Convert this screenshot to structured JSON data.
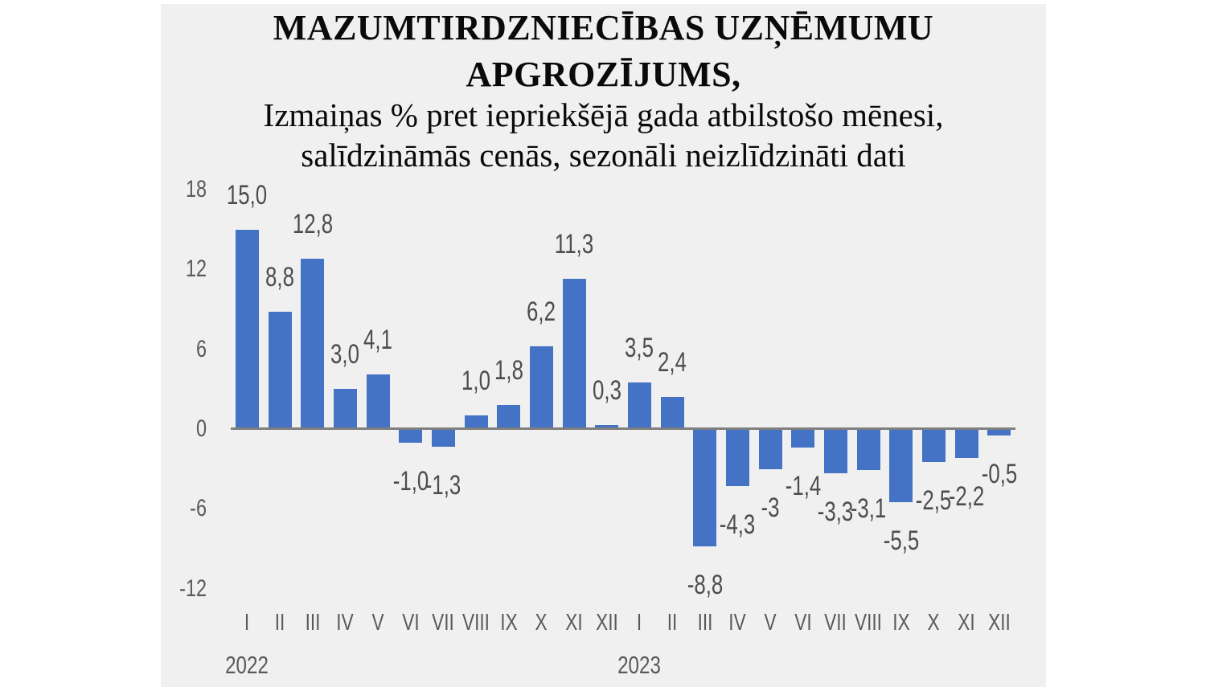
{
  "title": {
    "line1": "MAZUMTIRDZNIECĪBAS UZŅĒMUMU",
    "line2": "APGROZĪJUMS,"
  },
  "subtitle": {
    "line1": "Izmaiņas % pret iepriekšējā gada atbilstošo mēnesi,",
    "line2": "salīdzināmās cenās, sezonāli neizlīdzināti dati"
  },
  "chart_data": {
    "type": "bar",
    "categories": [
      "I",
      "II",
      "III",
      "IV",
      "V",
      "VI",
      "VII",
      "VIII",
      "IX",
      "X",
      "XI",
      "XII",
      "I",
      "II",
      "III",
      "IV",
      "V",
      "VI",
      "VII",
      "VIII",
      "IX",
      "X",
      "XI",
      "XII"
    ],
    "values": [
      15.0,
      8.8,
      12.8,
      3.0,
      4.1,
      -1.0,
      -1.3,
      1.0,
      1.8,
      6.2,
      11.3,
      0.3,
      3.5,
      2.4,
      -8.8,
      -4.3,
      -3,
      -1.4,
      -3.3,
      -3.1,
      -5.5,
      -2.5,
      -2.2,
      -0.5
    ],
    "labels": [
      "15,0",
      "8,8",
      "12,8",
      "3,0",
      "4,1",
      "-1,0",
      "-1,3",
      "1,0",
      "1,8",
      "6,2",
      "11,3",
      "0,3",
      "3,5",
      "2,4",
      "-8,8",
      "-4,3",
      "-3",
      "-1,4",
      "-3,3",
      "-3,1",
      "-5,5",
      "-2,5",
      "-2,2",
      "-0,5"
    ],
    "years": [
      {
        "label": "2022",
        "start_index": 0
      },
      {
        "label": "2023",
        "start_index": 12
      }
    ],
    "y_ticks": [
      18,
      12,
      6,
      0,
      -6,
      -12
    ],
    "ylim": [
      -12,
      18
    ],
    "grid": false,
    "legend": "none",
    "colors": {
      "bar": "#4472C4",
      "value_label": "#4d4d4d",
      "axis_label": "#595959",
      "axis_line": "#7f7f7f",
      "panel_background": "#F0F0F0",
      "outer_background": "#ffffff"
    }
  }
}
